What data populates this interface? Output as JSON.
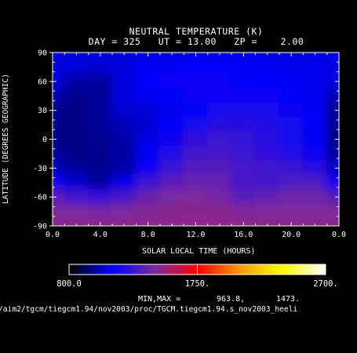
{
  "chart_data": {
    "type": "heatmap",
    "title": "NEUTRAL TEMPERATURE (K)",
    "subtitle": "DAY = 325   UT = 13.00   ZP =    2.00",
    "xlabel": "SOLAR LOCAL TIME (HOURS)",
    "ylabel": "LATITUDE (DEGREES GEOGRAPHIC)",
    "xlim": [
      0.0,
      24.0
    ],
    "ylim": [
      -90,
      90
    ],
    "x_ticks": [
      "0.0",
      "4.0",
      "8.0",
      "12.0",
      "16.0",
      "20.0",
      "0.0"
    ],
    "y_ticks": [
      "90",
      "60",
      "30",
      "0",
      "-30",
      "-60",
      "-90"
    ],
    "x": [
      0,
      2,
      4,
      6,
      8,
      10,
      12,
      14,
      16,
      18,
      20,
      22,
      24
    ],
    "y": [
      90,
      75,
      60,
      45,
      30,
      15,
      0,
      -15,
      -30,
      -45,
      -60,
      -75,
      -90
    ],
    "z": [
      [
        1080,
        1080,
        1080,
        1080,
        1080,
        1080,
        1085,
        1085,
        1085,
        1080,
        1080,
        1080,
        1080
      ],
      [
        1085,
        1070,
        1060,
        1080,
        1100,
        1110,
        1120,
        1115,
        1110,
        1100,
        1090,
        1090,
        1085
      ],
      [
        1075,
        1010,
        1000,
        1070,
        1120,
        1140,
        1150,
        1145,
        1130,
        1120,
        1110,
        1100,
        1075
      ],
      [
        1020,
        975,
        990,
        1080,
        1100,
        1120,
        1140,
        1150,
        1145,
        1140,
        1130,
        1090,
        1020
      ],
      [
        980,
        965,
        990,
        1060,
        1070,
        1090,
        1130,
        1170,
        1180,
        1180,
        1160,
        1110,
        980
      ],
      [
        970,
        965,
        985,
        1030,
        1060,
        1110,
        1170,
        1220,
        1220,
        1200,
        1170,
        1110,
        970
      ],
      [
        970,
        965,
        980,
        1010,
        1080,
        1160,
        1240,
        1270,
        1250,
        1220,
        1180,
        1110,
        970
      ],
      [
        990,
        970,
        975,
        1000,
        1100,
        1200,
        1280,
        1300,
        1270,
        1240,
        1200,
        1150,
        990
      ],
      [
        1040,
        990,
        975,
        1010,
        1150,
        1260,
        1330,
        1340,
        1300,
        1280,
        1260,
        1220,
        1040
      ],
      [
        1160,
        1060,
        1000,
        1090,
        1260,
        1350,
        1390,
        1380,
        1300,
        1290,
        1320,
        1320,
        1160
      ],
      [
        1340,
        1280,
        1240,
        1300,
        1390,
        1430,
        1440,
        1420,
        1340,
        1360,
        1400,
        1400,
        1340
      ],
      [
        1440,
        1430,
        1420,
        1430,
        1450,
        1465,
        1470,
        1465,
        1450,
        1440,
        1440,
        1440,
        1440
      ],
      [
        1473,
        1473,
        1473,
        1473,
        1473,
        1473,
        1473,
        1473,
        1473,
        1473,
        1473,
        1473,
        1473
      ]
    ],
    "colorbar": {
      "min": 800.0,
      "max": 2700.0,
      "tick_labels": [
        "800.0",
        "1750.",
        "2700."
      ],
      "colors": [
        "#000000",
        "#0000ff",
        "#7a2aa0",
        "#ff0000",
        "#ff9a00",
        "#ffff00",
        "#ffffff"
      ]
    },
    "minmax_label": "MIN,MAX =",
    "min_value": "963.8,",
    "max_value": "1473.",
    "footer": "/aim2/tgcm/tiegcm1.94/nov2003/proc/TGCM.tiegcm1.94.s_nov2003_heeli"
  }
}
